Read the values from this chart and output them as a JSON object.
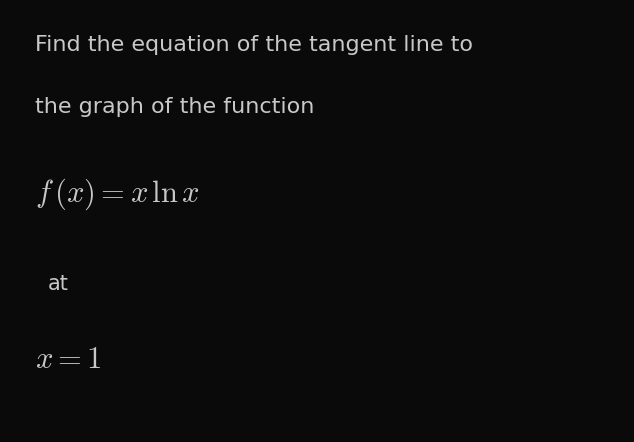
{
  "background_color": "#0a0a0a",
  "text_color": "#c8c8c8",
  "title_line1": "Find the equation of the tangent line to",
  "title_line2": "the graph of the function",
  "formula": "$f\\,(x) = x\\,\\ln x$",
  "at_text": "at",
  "x_eq": "$x = 1$",
  "title_fontsize": 16,
  "formula_fontsize": 22,
  "at_fontsize": 15,
  "xeq_fontsize": 22,
  "fig_width": 6.34,
  "fig_height": 4.42,
  "dpi": 100
}
